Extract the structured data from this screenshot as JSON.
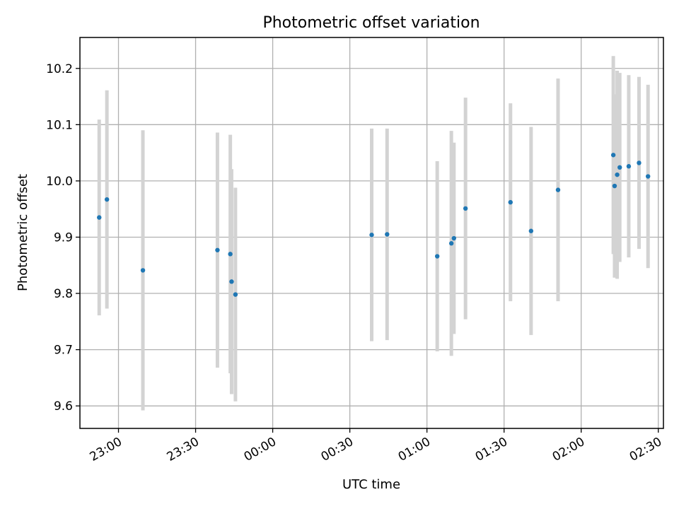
{
  "chart_data": {
    "type": "scatter",
    "title": "Photometric offset variation",
    "xlabel": "UTC time",
    "ylabel": "Photometric offset",
    "xlim": [
      "22:45",
      "02:32"
    ],
    "ylim": [
      9.56,
      10.255
    ],
    "grid": true,
    "xticks": [
      "23:00",
      "23:30",
      "00:00",
      "00:30",
      "01:00",
      "01:30",
      "02:00",
      "02:30"
    ],
    "yticks": [
      "9.6",
      "9.7",
      "9.8",
      "9.9",
      "10.0",
      "10.1",
      "10.2"
    ],
    "errorbar_color": "#d3d3d3",
    "marker_color": "#1f77b4",
    "points": [
      {
        "time": "22:52:30",
        "y": 9.935,
        "err": 0.174
      },
      {
        "time": "22:55:30",
        "y": 9.967,
        "err": 0.194
      },
      {
        "time": "23:09:30",
        "y": 9.841,
        "err": 0.249
      },
      {
        "time": "23:38:30",
        "y": 9.877,
        "err": 0.209
      },
      {
        "time": "23:43:30",
        "y": 9.87,
        "err": 0.212
      },
      {
        "time": "23:44:00",
        "y": 9.821,
        "err": 0.2
      },
      {
        "time": "23:45:30",
        "y": 9.798,
        "err": 0.19
      },
      {
        "time": "00:38:30",
        "y": 9.904,
        "err": 0.189
      },
      {
        "time": "00:44:30",
        "y": 9.905,
        "err": 0.188
      },
      {
        "time": "01:04:00",
        "y": 9.866,
        "err": 0.169
      },
      {
        "time": "01:09:30",
        "y": 9.889,
        "err": 0.2
      },
      {
        "time": "01:10:30",
        "y": 9.898,
        "err": 0.17
      },
      {
        "time": "01:15:00",
        "y": 9.951,
        "err": 0.197
      },
      {
        "time": "01:32:30",
        "y": 9.962,
        "err": 0.176
      },
      {
        "time": "01:40:30",
        "y": 9.911,
        "err": 0.185
      },
      {
        "time": "01:51:00",
        "y": 9.984,
        "err": 0.198
      },
      {
        "time": "02:12:30",
        "y": 10.046,
        "err": 0.176
      },
      {
        "time": "02:13:00",
        "y": 9.991,
        "err": 0.163
      },
      {
        "time": "02:14:00",
        "y": 10.011,
        "err": 0.185
      },
      {
        "time": "02:15:00",
        "y": 10.024,
        "err": 0.168
      },
      {
        "time": "02:18:30",
        "y": 10.026,
        "err": 0.162
      },
      {
        "time": "02:22:30",
        "y": 10.032,
        "err": 0.153
      },
      {
        "time": "02:26:00",
        "y": 10.008,
        "err": 0.163
      }
    ]
  }
}
